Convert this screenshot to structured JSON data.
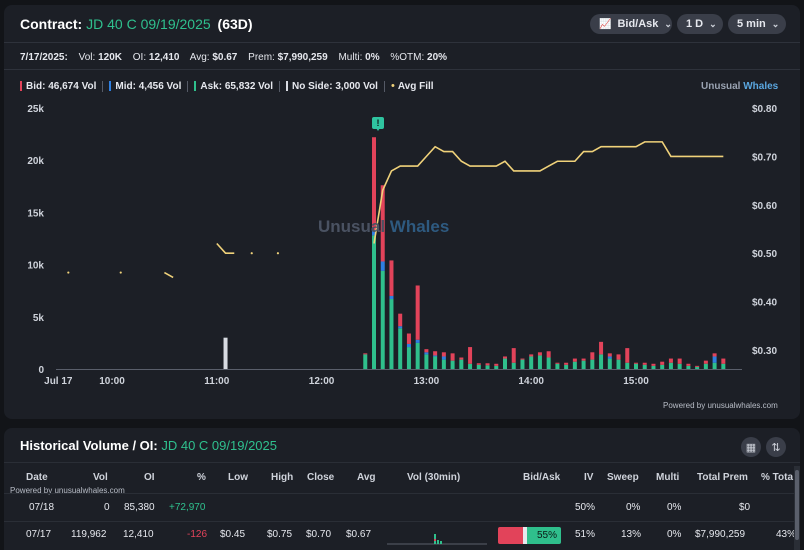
{
  "contract": {
    "label": "Contract:",
    "name": "JD 40 C 09/19/2025",
    "dte": "(63D)"
  },
  "controls": {
    "mode": "Bid/Ask",
    "range": "1 D",
    "interval": "5 min"
  },
  "stats": {
    "date": "7/17/2025:",
    "vol_label": "Vol:",
    "vol": "120K",
    "oi_label": "OI:",
    "oi": "12,410",
    "avg_label": "Avg:",
    "avg": "$0.67",
    "prem_label": "Prem:",
    "prem": "$7,990,259",
    "multi_label": "Multi:",
    "multi": "0%",
    "otm_label": "%OTM:",
    "otm": "20%"
  },
  "legend": {
    "bid": "Bid: 46,674 Vol",
    "mid": "Mid: 4,456 Vol",
    "ask": "Ask: 65,832 Vol",
    "noside": "No Side: 3,000 Vol",
    "avgfill": "Avg Fill"
  },
  "brand": {
    "part1": "Unusual",
    "part2": "Whales"
  },
  "watermark": {
    "part1": "Unusual",
    "part2": "Whales"
  },
  "powered_by": "Powered by unusualwhales.com",
  "colors": {
    "bid": "#e2435a",
    "mid": "#2f7fe0",
    "ask": "#2fbf8c",
    "noside": "#d8dbe2",
    "avgfill": "#f0d27a"
  },
  "chart_data": {
    "type": "bar",
    "stacked": true,
    "y_left": {
      "ticks": [
        "25k",
        "20k",
        "15k",
        "10k",
        "5k",
        "0"
      ],
      "range": [
        0,
        25000
      ]
    },
    "y_right": {
      "ticks": [
        "$0.80",
        "$0.70",
        "$0.60",
        "$0.50",
        "$0.40",
        "$0.30"
      ],
      "range": [
        0.25,
        0.8
      ]
    },
    "x_ticks": [
      "Jul 17",
      "10:00",
      "11:00",
      "12:00",
      "13:00",
      "14:00",
      "15:00"
    ],
    "bars": [
      {
        "time": "11:05",
        "noside": 3000
      },
      {
        "time": "12:25",
        "ask": 1400,
        "bid": 100
      },
      {
        "time": "12:30",
        "ask": 12800,
        "mid": 500,
        "bid": 8900
      },
      {
        "time": "12:35",
        "ask": 9400,
        "mid": 900,
        "bid": 7300
      },
      {
        "time": "12:40",
        "ask": 6700,
        "mid": 300,
        "bid": 3400
      },
      {
        "time": "12:45",
        "ask": 3900,
        "mid": 200,
        "bid": 1200
      },
      {
        "time": "12:50",
        "ask": 2100,
        "mid": 300,
        "bid": 1000
      },
      {
        "time": "12:55",
        "ask": 2500,
        "mid": 300,
        "bid": 5200
      },
      {
        "time": "13:00",
        "ask": 1400,
        "mid": 200,
        "bid": 300
      },
      {
        "time": "13:05",
        "ask": 1200,
        "mid": 100,
        "bid": 400
      },
      {
        "time": "13:10",
        "ask": 900,
        "mid": 300,
        "bid": 400
      },
      {
        "time": "13:15",
        "ask": 800,
        "bid": 700
      },
      {
        "time": "13:20",
        "ask": 900,
        "bid": 200
      },
      {
        "time": "13:25",
        "ask": 500,
        "bid": 1600
      },
      {
        "time": "13:30",
        "ask": 400,
        "bid": 150
      },
      {
        "time": "13:35",
        "ask": 350,
        "bid": 200
      },
      {
        "time": "13:40",
        "ask": 300,
        "bid": 200
      },
      {
        "time": "13:45",
        "ask": 1000,
        "bid": 200
      },
      {
        "time": "13:50",
        "ask": 600,
        "bid": 1400
      },
      {
        "time": "13:55",
        "ask": 900,
        "bid": 100
      },
      {
        "time": "14:00",
        "ask": 1200,
        "bid": 200
      },
      {
        "time": "14:05",
        "ask": 1300,
        "bid": 300
      },
      {
        "time": "14:10",
        "ask": 1100,
        "bid": 600
      },
      {
        "time": "14:15",
        "ask": 500,
        "bid": 100
      },
      {
        "time": "14:20",
        "ask": 400,
        "bid": 200
      },
      {
        "time": "14:25",
        "ask": 700,
        "bid": 300
      },
      {
        "time": "14:30",
        "ask": 800,
        "bid": 200
      },
      {
        "time": "14:35",
        "ask": 900,
        "bid": 700
      },
      {
        "time": "14:40",
        "ask": 1400,
        "bid": 1200
      },
      {
        "time": "14:45",
        "ask": 1000,
        "mid": 200,
        "bid": 300
      },
      {
        "time": "14:50",
        "ask": 900,
        "bid": 500
      },
      {
        "time": "14:55",
        "ask": 600,
        "bid": 1400
      },
      {
        "time": "15:00",
        "ask": 500,
        "bid": 100
      },
      {
        "time": "15:05",
        "ask": 400,
        "bid": 200
      },
      {
        "time": "15:10",
        "ask": 300,
        "bid": 200
      },
      {
        "time": "15:15",
        "ask": 400,
        "bid": 300
      },
      {
        "time": "15:20",
        "ask": 600,
        "bid": 400
      },
      {
        "time": "15:25",
        "ask": 500,
        "bid": 500
      },
      {
        "time": "15:30",
        "ask": 300,
        "bid": 200
      },
      {
        "time": "15:35",
        "ask": 200,
        "bid": 100
      },
      {
        "time": "15:40",
        "ask": 500,
        "bid": 300
      },
      {
        "time": "15:45",
        "ask": 600,
        "mid": 600,
        "bid": 300
      },
      {
        "time": "15:50",
        "ask": 500,
        "bid": 500
      }
    ],
    "avg_fill_line": [
      {
        "time": "12:30",
        "price": 0.52
      },
      {
        "time": "12:35",
        "price": 0.63
      },
      {
        "time": "12:40",
        "price": 0.67
      },
      {
        "time": "12:45",
        "price": 0.68
      },
      {
        "time": "12:55",
        "price": 0.68
      },
      {
        "time": "13:00",
        "price": 0.7
      },
      {
        "time": "13:05",
        "price": 0.72
      },
      {
        "time": "13:10",
        "price": 0.71
      },
      {
        "time": "13:15",
        "price": 0.71
      },
      {
        "time": "13:20",
        "price": 0.69
      },
      {
        "time": "13:25",
        "price": 0.68
      },
      {
        "time": "13:40",
        "price": 0.68
      },
      {
        "time": "13:45",
        "price": 0.69
      },
      {
        "time": "13:50",
        "price": 0.67
      },
      {
        "time": "14:05",
        "price": 0.67
      },
      {
        "time": "14:10",
        "price": 0.68
      },
      {
        "time": "14:15",
        "price": 0.69
      },
      {
        "time": "14:25",
        "price": 0.69
      },
      {
        "time": "14:30",
        "price": 0.71
      },
      {
        "time": "14:35",
        "price": 0.71
      },
      {
        "time": "14:40",
        "price": 0.72
      },
      {
        "time": "15:00",
        "price": 0.72
      },
      {
        "time": "15:05",
        "price": 0.73
      },
      {
        "time": "15:15",
        "price": 0.73
      },
      {
        "time": "15:20",
        "price": 0.7
      },
      {
        "time": "15:50",
        "price": 0.7
      }
    ],
    "avg_fill_segments": [
      [
        {
          "time": "11:00",
          "price": 0.52
        },
        {
          "time": "11:05",
          "price": 0.5
        },
        {
          "time": "11:10",
          "price": 0.5
        }
      ],
      [
        {
          "time": "10:30",
          "price": 0.46
        },
        {
          "time": "10:35",
          "price": 0.45
        }
      ]
    ],
    "avg_fill_points": [
      {
        "time": "09:35",
        "price": 0.46
      },
      {
        "time": "10:05",
        "price": 0.46
      },
      {
        "time": "11:20",
        "price": 0.5
      },
      {
        "time": "11:35",
        "price": 0.5
      }
    ]
  },
  "historical": {
    "title": "Historical Volume / OI:",
    "name": "JD 40 C 09/19/2025",
    "headers": [
      "Date",
      "Vol",
      "OI",
      "%",
      "Low",
      "High",
      "Close",
      "Avg",
      "Vol (30min)",
      "Bid/Ask",
      "IV",
      "Sweep",
      "Multi",
      "Total Prem",
      "% Tota"
    ],
    "powered_by": "Powered by unusualwhales.com",
    "rows": [
      {
        "date": "07/18",
        "vol": "0",
        "oi": "85,380",
        "pct": "+72,970",
        "low": "",
        "high": "",
        "close": "",
        "avg": "",
        "iv": "50%",
        "sweep": "0%",
        "multi": "0%",
        "prem": "$0",
        "pct_total": ""
      },
      {
        "date": "07/17",
        "vol": "119,962",
        "oi": "12,410",
        "pct": "-126",
        "low": "$0.45",
        "high": "$0.75",
        "close": "$0.70",
        "avg": "$0.67",
        "bidask": "55%",
        "bid_share": 0.45,
        "iv": "51%",
        "sweep": "13%",
        "multi": "0%",
        "prem": "$7,990,259",
        "pct_total": "43%"
      }
    ]
  }
}
